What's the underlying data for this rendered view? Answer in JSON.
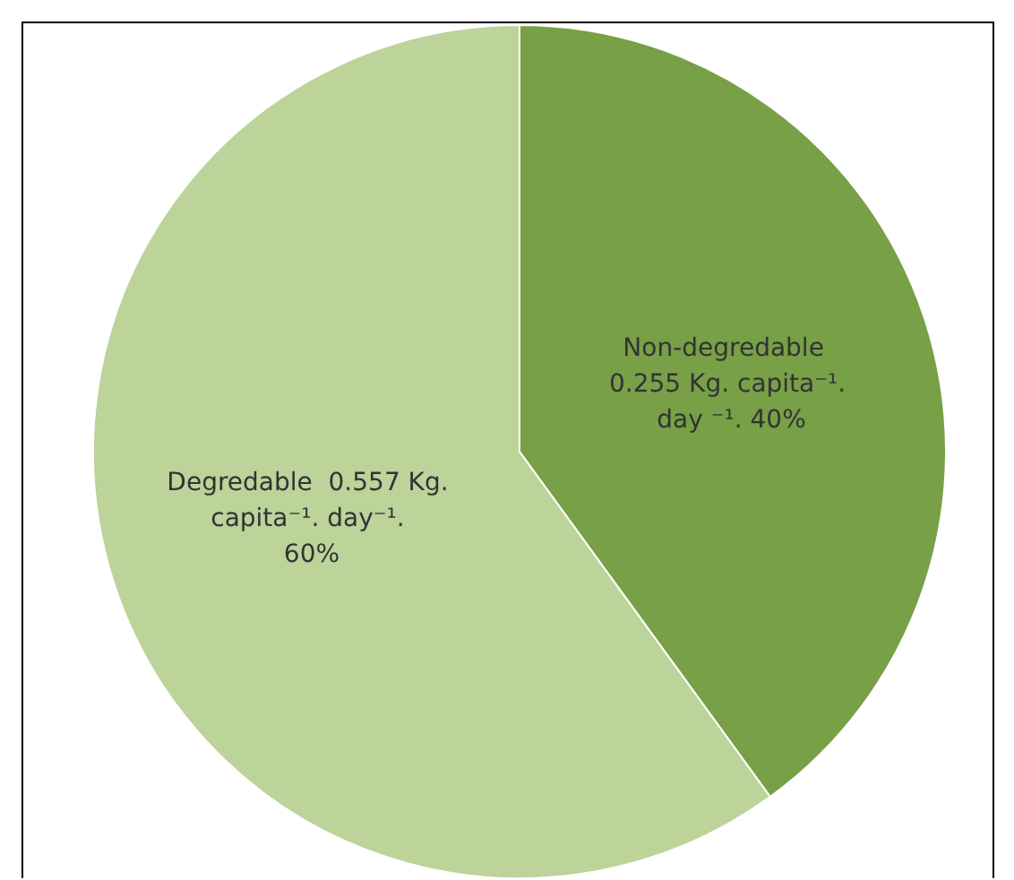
{
  "chart_data": {
    "type": "pie",
    "categories": [
      "Non-degredable 0.255 Kg. capita⁻¹. day ⁻¹.",
      "Degredable  0.557 Kg. capita⁻¹. day⁻¹."
    ],
    "values": [
      40,
      60
    ],
    "value_labels": [
      "40%",
      "60%"
    ],
    "colors": [
      "#77a047",
      "#bcd39a"
    ]
  }
}
